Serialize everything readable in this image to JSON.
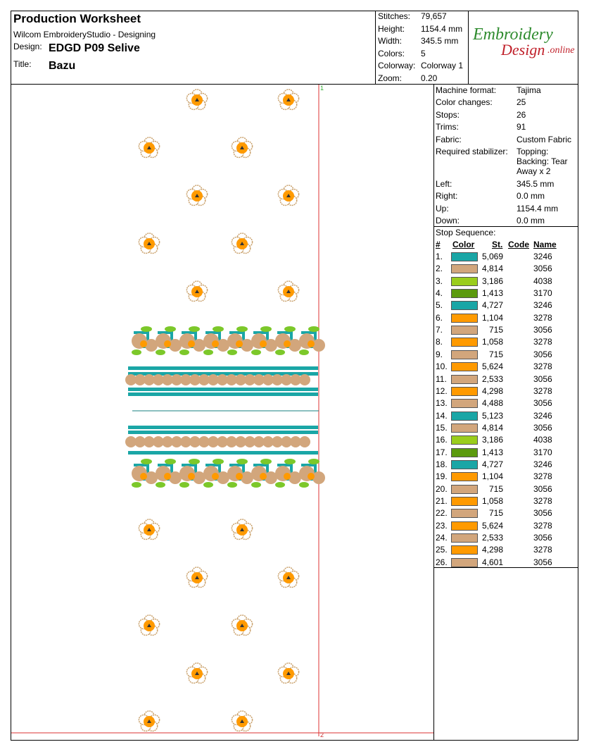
{
  "header": {
    "title": "Production Worksheet",
    "software": "Wilcom EmbroideryStudio - Designing",
    "design_label": "Design:",
    "design": "EDGD P09 Selive",
    "title_label": "Title:",
    "title_value": "Bazu"
  },
  "summary": [
    [
      "Stitches:",
      "79,657"
    ],
    [
      "Height:",
      "1154.4 mm"
    ],
    [
      "Width:",
      "345.5 mm"
    ],
    [
      "Colors:",
      "5"
    ],
    [
      "Colorway:",
      "Colorway 1"
    ],
    [
      "Zoom:",
      "0.20"
    ]
  ],
  "logo": {
    "line1": "Embroidery",
    "line2": "Design",
    "line3": ".online"
  },
  "machine": [
    {
      "label": "Machine format:",
      "value": [
        "Tajima"
      ]
    },
    {
      "label": "Color changes:",
      "value": [
        "25"
      ]
    },
    {
      "label": "Stops:",
      "value": [
        "26"
      ]
    },
    {
      "label": "Trims:",
      "value": [
        "91"
      ]
    },
    {
      "label": "Fabric:",
      "value": [
        "Custom Fabric"
      ]
    },
    {
      "label": "Required stabilizer:",
      "value": [
        "Topping:",
        "Backing: Tear Away x 2"
      ]
    },
    {
      "label": "Left:",
      "value": [
        "345.5 mm"
      ]
    },
    {
      "label": "Right:",
      "value": [
        "0.0 mm"
      ]
    },
    {
      "label": "Up:",
      "value": [
        "1154.4 mm"
      ]
    },
    {
      "label": "Down:",
      "value": [
        "0.0 mm"
      ]
    }
  ],
  "stop_sequence": {
    "heading": "Stop Sequence:",
    "columns": [
      "#",
      "Color",
      "St.",
      "Code",
      "Name"
    ],
    "rows": [
      {
        "n": "1.",
        "color": "#1aa6a6",
        "stitches": "5,069",
        "name": "3246"
      },
      {
        "n": "2.",
        "color": "#d2a67c",
        "stitches": "4,814",
        "name": "3056"
      },
      {
        "n": "3.",
        "color": "#9acd1c",
        "stitches": "3,186",
        "name": "4038"
      },
      {
        "n": "4.",
        "color": "#5b9a0e",
        "stitches": "1,413",
        "name": "3170"
      },
      {
        "n": "5.",
        "color": "#1aa6a6",
        "stitches": "4,727",
        "name": "3246"
      },
      {
        "n": "6.",
        "color": "#ff9a00",
        "stitches": "1,104",
        "name": "3278"
      },
      {
        "n": "7.",
        "color": "#d2a67c",
        "stitches": "715",
        "name": "3056"
      },
      {
        "n": "8.",
        "color": "#ff9a00",
        "stitches": "1,058",
        "name": "3278"
      },
      {
        "n": "9.",
        "color": "#d2a67c",
        "stitches": "715",
        "name": "3056"
      },
      {
        "n": "10.",
        "color": "#ff9a00",
        "stitches": "5,624",
        "name": "3278"
      },
      {
        "n": "11.",
        "color": "#d2a67c",
        "stitches": "2,533",
        "name": "3056"
      },
      {
        "n": "12.",
        "color": "#ff9a00",
        "stitches": "4,298",
        "name": "3278"
      },
      {
        "n": "13.",
        "color": "#d2a67c",
        "stitches": "4,488",
        "name": "3056"
      },
      {
        "n": "14.",
        "color": "#1aa6a6",
        "stitches": "5,123",
        "name": "3246"
      },
      {
        "n": "15.",
        "color": "#d2a67c",
        "stitches": "4,814",
        "name": "3056"
      },
      {
        "n": "16.",
        "color": "#9acd1c",
        "stitches": "3,186",
        "name": "4038"
      },
      {
        "n": "17.",
        "color": "#5b9a0e",
        "stitches": "1,413",
        "name": "3170"
      },
      {
        "n": "18.",
        "color": "#1aa6a6",
        "stitches": "4,727",
        "name": "3246"
      },
      {
        "n": "19.",
        "color": "#ff9a00",
        "stitches": "1,104",
        "name": "3278"
      },
      {
        "n": "20.",
        "color": "#d2a67c",
        "stitches": "715",
        "name": "3056"
      },
      {
        "n": "21.",
        "color": "#ff9a00",
        "stitches": "1,058",
        "name": "3278"
      },
      {
        "n": "22.",
        "color": "#d2a67c",
        "stitches": "715",
        "name": "3056"
      },
      {
        "n": "23.",
        "color": "#ff9a00",
        "stitches": "5,624",
        "name": "3278"
      },
      {
        "n": "24.",
        "color": "#d2a67c",
        "stitches": "2,533",
        "name": "3056"
      },
      {
        "n": "25.",
        "color": "#ff9a00",
        "stitches": "4,298",
        "name": "3278"
      },
      {
        "n": "26.",
        "color": "#d2a67c",
        "stitches": "4,601",
        "name": "3056"
      }
    ]
  },
  "markers": [
    "1",
    "2"
  ]
}
